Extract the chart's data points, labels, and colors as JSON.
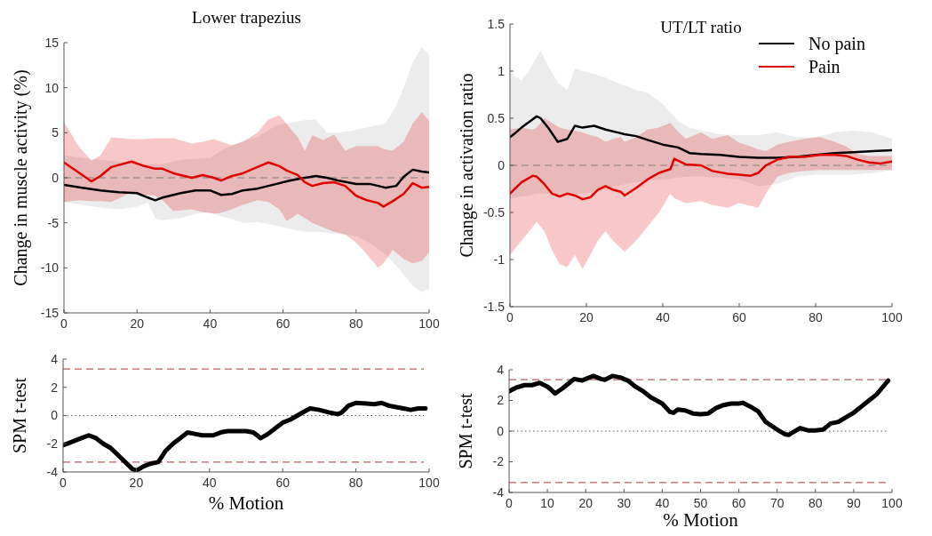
{
  "chart_data": [
    {
      "type": "line",
      "title": "Lower trapezius",
      "ylabel": "Change in muscle activity (%)",
      "xlim": [
        0,
        100
      ],
      "xticks": [
        0,
        20,
        40,
        60,
        80,
        100
      ],
      "ylim": [
        -15,
        15
      ],
      "yticks": [
        -15,
        -10,
        -5,
        0,
        5,
        10,
        15
      ],
      "grid": false,
      "legend": false,
      "ref_lines": [
        {
          "axis": "y",
          "value": 0,
          "color": "#808080",
          "line_style": "dashed"
        }
      ],
      "series": [
        {
          "color": "#000000",
          "x": [
            0,
            5,
            10,
            15,
            20,
            23,
            25,
            27,
            32,
            36,
            40,
            43,
            46,
            49,
            53,
            58,
            62,
            66,
            69,
            72,
            75,
            80,
            84,
            88,
            91,
            93,
            95.5,
            98,
            100
          ],
          "values": [
            -0.8,
            -1.1,
            -1.4,
            -1.6,
            -1.7,
            -2.2,
            -2.5,
            -2.2,
            -1.7,
            -1.4,
            -1.4,
            -1.9,
            -1.8,
            -1.4,
            -1.2,
            -0.7,
            -0.3,
            0,
            0.2,
            0,
            -0.3,
            -0.7,
            -0.7,
            -1.1,
            -0.9,
            0.1,
            0.9,
            0.7,
            0.6
          ],
          "upper": [
            2.5,
            2.2,
            2.0,
            1.8,
            1.5,
            1.5,
            1.5,
            1.5,
            2.0,
            2.1,
            2.2,
            3.0,
            3.6,
            4.1,
            4.5,
            5.8,
            6.1,
            6.4,
            6.5,
            5.0,
            5.0,
            5.3,
            5.7,
            6.0,
            8.0,
            10.0,
            12.8,
            14.5,
            13.7
          ],
          "lower": [
            -2.7,
            -3.0,
            -3.3,
            -3.5,
            -3.2,
            -2.8,
            -4.5,
            -4.7,
            -4.5,
            -4.0,
            -3.8,
            -4.3,
            -4.6,
            -5.0,
            -4.9,
            -5.3,
            -5.7,
            -6.0,
            -6.0,
            -6.1,
            -6.2,
            -6.5,
            -7.3,
            -8.5,
            -9.8,
            -10.7,
            -12.0,
            -12.7,
            -12.3
          ]
        },
        {
          "color": "#e00000",
          "x": [
            0,
            4,
            7.5,
            10,
            13,
            18.5,
            22,
            25,
            27,
            30,
            35,
            38,
            41,
            43,
            46,
            49,
            53,
            56,
            59,
            61,
            64,
            66,
            68,
            71,
            74,
            77,
            80,
            83,
            86,
            87.5,
            90,
            93,
            95.5,
            98,
            100
          ],
          "values": [
            1.7,
            0.6,
            -0.4,
            0.2,
            1.2,
            1.8,
            1.3,
            1.0,
            1.0,
            0.5,
            0.0,
            0.3,
            0.0,
            -0.3,
            0.2,
            0.5,
            1.2,
            1.7,
            1.3,
            0.8,
            0.3,
            -0.5,
            -0.9,
            -0.6,
            -0.5,
            -0.9,
            -2.0,
            -2.5,
            -2.8,
            -3.2,
            -2.6,
            -1.8,
            -0.6,
            -1.1,
            -1.0
          ],
          "upper": [
            6.2,
            3.5,
            1.9,
            2.5,
            4.5,
            4.3,
            4.3,
            4.4,
            4.4,
            4.4,
            3.8,
            4.0,
            4.3,
            4.0,
            3.6,
            4.0,
            5.0,
            6.5,
            6.9,
            6.0,
            4.5,
            3.0,
            4.7,
            4.2,
            4.8,
            3.0,
            3.5,
            3.5,
            3.5,
            3.2,
            3.0,
            4.0,
            6.0,
            7.3,
            6.3
          ],
          "lower": [
            -2.7,
            -2.5,
            -2.6,
            -2.6,
            -2.7,
            -1.6,
            -1.9,
            -2.0,
            -2.5,
            -3.7,
            -3.5,
            -3.8,
            -4.0,
            -3.9,
            -3.5,
            -3.0,
            -2.5,
            -2.7,
            -3.5,
            -4.8,
            -4.0,
            -4.5,
            -5.0,
            -5.5,
            -6.0,
            -6.3,
            -7.2,
            -8.5,
            -10.0,
            -9.5,
            -8.0,
            -9.0,
            -9.5,
            -9.2,
            -8.3
          ]
        }
      ]
    },
    {
      "type": "line",
      "title": "UT/LT ratio",
      "ylabel": "Change in activation ratio",
      "xlim": [
        0,
        100
      ],
      "xticks": [
        0,
        20,
        40,
        60,
        80,
        100
      ],
      "ylim": [
        -1.5,
        1.5
      ],
      "yticks": [
        -1.5,
        -1,
        -0.5,
        0,
        0.5,
        1,
        1.5
      ],
      "grid": false,
      "legend": "top right",
      "ref_lines": [
        {
          "axis": "y",
          "value": 0,
          "color": "#808080",
          "line_style": "dashed"
        }
      ],
      "series": [
        {
          "name": "No pain",
          "color": "#000000",
          "x": [
            0,
            1,
            3,
            5,
            7,
            8,
            10,
            12.5,
            15,
            17,
            19,
            22,
            25,
            28,
            30,
            33,
            36,
            40,
            44,
            47,
            50,
            55,
            60,
            65,
            70,
            75,
            80,
            85,
            90,
            95,
            100
          ],
          "values": [
            0.3,
            0.33,
            0.4,
            0.46,
            0.52,
            0.5,
            0.4,
            0.25,
            0.28,
            0.42,
            0.4,
            0.42,
            0.38,
            0.35,
            0.33,
            0.31,
            0.27,
            0.22,
            0.19,
            0.13,
            0.12,
            0.11,
            0.09,
            0.08,
            0.08,
            0.09,
            0.11,
            0.13,
            0.14,
            0.15,
            0.16
          ],
          "upper": [
            1.0,
            0.95,
            0.9,
            1.0,
            1.15,
            1.22,
            1.05,
            0.88,
            0.8,
            1.03,
            1.0,
            0.97,
            0.93,
            0.88,
            0.85,
            0.8,
            0.77,
            0.65,
            0.47,
            0.4,
            0.37,
            0.33,
            0.32,
            0.32,
            0.35,
            0.3,
            0.3,
            0.35,
            0.37,
            0.35,
            0.28
          ],
          "lower": [
            -0.35,
            -0.35,
            -0.33,
            -0.32,
            -0.3,
            -0.3,
            -0.3,
            -0.3,
            -0.3,
            -0.3,
            -0.3,
            -0.28,
            -0.25,
            -0.22,
            -0.2,
            -0.18,
            -0.16,
            -0.15,
            -0.13,
            -0.12,
            -0.12,
            -0.13,
            -0.15,
            -0.22,
            -0.2,
            -0.12,
            -0.1,
            -0.1,
            -0.1,
            -0.08,
            -0.05
          ]
        },
        {
          "name": "Pain",
          "color": "#e00000",
          "x": [
            0,
            3,
            6,
            7,
            9,
            11,
            13,
            15,
            17,
            19,
            21,
            23,
            25,
            27,
            29,
            30,
            33,
            36,
            39,
            42,
            43,
            46,
            50,
            53,
            57,
            60,
            63,
            65,
            67,
            70,
            73,
            77,
            81,
            85,
            88,
            91,
            94,
            97,
            100
          ],
          "values": [
            -0.3,
            -0.18,
            -0.11,
            -0.12,
            -0.2,
            -0.3,
            -0.33,
            -0.3,
            -0.32,
            -0.36,
            -0.34,
            -0.26,
            -0.22,
            -0.26,
            -0.28,
            -0.32,
            -0.24,
            -0.15,
            -0.08,
            -0.04,
            0.07,
            0.01,
            0.0,
            -0.06,
            -0.09,
            -0.1,
            -0.11,
            -0.08,
            0.0,
            0.06,
            0.09,
            0.09,
            0.11,
            0.11,
            0.1,
            0.06,
            0.03,
            0.02,
            0.04
          ],
          "upper": [
            0.38,
            0.4,
            0.38,
            0.4,
            0.5,
            0.45,
            0.4,
            0.38,
            0.37,
            0.35,
            0.32,
            0.3,
            0.25,
            0.28,
            0.3,
            0.25,
            0.3,
            0.38,
            0.4,
            0.45,
            0.4,
            0.28,
            0.35,
            0.28,
            0.32,
            0.24,
            0.2,
            0.17,
            0.15,
            0.22,
            0.25,
            0.28,
            0.3,
            0.25,
            0.2,
            0.12,
            0.1,
            0.1,
            0.1
          ],
          "lower": [
            -0.95,
            -0.8,
            -0.65,
            -0.6,
            -0.7,
            -0.9,
            -1.05,
            -1.08,
            -0.95,
            -1.1,
            -0.95,
            -0.8,
            -0.7,
            -0.8,
            -0.88,
            -0.92,
            -0.8,
            -0.65,
            -0.5,
            -0.3,
            -0.35,
            -0.4,
            -0.38,
            -0.42,
            -0.45,
            -0.4,
            -0.43,
            -0.45,
            -0.3,
            -0.12,
            -0.08,
            -0.06,
            -0.05,
            -0.05,
            -0.05,
            -0.05,
            -0.05,
            -0.05,
            -0.05
          ]
        }
      ]
    },
    {
      "type": "line",
      "xlabel": "% Motion",
      "ylabel": "SPM t-test",
      "xlim": [
        0,
        100
      ],
      "xticks": [
        0,
        20,
        40,
        60,
        80,
        100
      ],
      "ylim": [
        -4,
        4
      ],
      "yticks": [
        -4,
        -2,
        0,
        2,
        4
      ],
      "grid": false,
      "legend": false,
      "ref_lines": [
        {
          "axis": "y",
          "value": 3.3,
          "color": "#b86060",
          "line_style": "dashed"
        },
        {
          "axis": "y",
          "value": -3.3,
          "color": "#b86060",
          "line_style": "dashed"
        },
        {
          "axis": "y",
          "value": 0,
          "color": "#606060",
          "line_style": "dotted"
        }
      ],
      "series": [
        {
          "color": "#000000",
          "x": [
            0,
            3,
            5,
            7,
            9,
            11,
            13,
            15,
            17,
            19,
            20,
            22,
            24,
            26,
            28,
            30,
            32,
            34,
            36,
            38,
            41,
            43,
            45,
            48,
            50,
            52,
            54,
            56,
            58,
            60,
            62,
            64,
            66,
            67.5,
            70,
            73,
            75,
            76,
            78,
            80,
            83,
            85,
            87,
            89,
            91,
            93,
            95,
            97,
            99
          ],
          "values": [
            -2.1,
            -1.8,
            -1.6,
            -1.4,
            -1.6,
            -2.0,
            -2.3,
            -2.8,
            -3.3,
            -3.8,
            -3.9,
            -3.6,
            -3.4,
            -3.3,
            -2.5,
            -2.0,
            -1.6,
            -1.2,
            -1.3,
            -1.4,
            -1.4,
            -1.2,
            -1.1,
            -1.1,
            -1.1,
            -1.2,
            -1.6,
            -1.3,
            -0.9,
            -0.5,
            -0.3,
            0.0,
            0.3,
            0.5,
            0.4,
            0.2,
            0.1,
            0.2,
            0.7,
            0.9,
            0.85,
            0.8,
            0.9,
            0.7,
            0.6,
            0.5,
            0.4,
            0.5,
            0.5
          ]
        }
      ]
    },
    {
      "type": "line",
      "xlabel": "% Motion",
      "ylabel": "SPM t-test",
      "xlim": [
        0,
        100
      ],
      "xticks": [
        0,
        10,
        20,
        30,
        40,
        50,
        60,
        70,
        80,
        90,
        100
      ],
      "ylim": [
        -4,
        4
      ],
      "yticks": [
        -4,
        -2,
        0,
        2,
        4
      ],
      "grid": false,
      "legend": false,
      "ref_lines": [
        {
          "axis": "y",
          "value": 3.35,
          "color": "#b86060",
          "line_style": "dashed"
        },
        {
          "axis": "y",
          "value": -3.35,
          "color": "#b86060",
          "line_style": "dashed"
        },
        {
          "axis": "y",
          "value": 0,
          "color": "#606060",
          "line_style": "dotted"
        }
      ],
      "series": [
        {
          "color": "#000000",
          "x": [
            0,
            2,
            4,
            6,
            8,
            10,
            11,
            12,
            14,
            16,
            17,
            19,
            21,
            22,
            24,
            25,
            27,
            29,
            31,
            33,
            35,
            37,
            40,
            42,
            43,
            44,
            46,
            48,
            50,
            52,
            54,
            56,
            58,
            60,
            61,
            63,
            65,
            67,
            70,
            72,
            73,
            74,
            76,
            78,
            80,
            82,
            84,
            86,
            88,
            90,
            92,
            94,
            96,
            98,
            99
          ],
          "values": [
            2.6,
            2.85,
            3.0,
            3.0,
            3.15,
            2.9,
            2.7,
            2.45,
            2.8,
            3.2,
            3.4,
            3.3,
            3.5,
            3.6,
            3.4,
            3.35,
            3.6,
            3.5,
            3.3,
            2.9,
            2.6,
            2.2,
            1.8,
            1.25,
            1.2,
            1.4,
            1.35,
            1.15,
            1.1,
            1.15,
            1.5,
            1.7,
            1.8,
            1.8,
            1.85,
            1.6,
            1.3,
            0.6,
            0.1,
            -0.2,
            -0.25,
            -0.1,
            0.2,
            0.05,
            0.05,
            0.1,
            0.5,
            0.6,
            0.9,
            1.2,
            1.6,
            2.0,
            2.4,
            3.0,
            3.3
          ]
        }
      ]
    }
  ]
}
